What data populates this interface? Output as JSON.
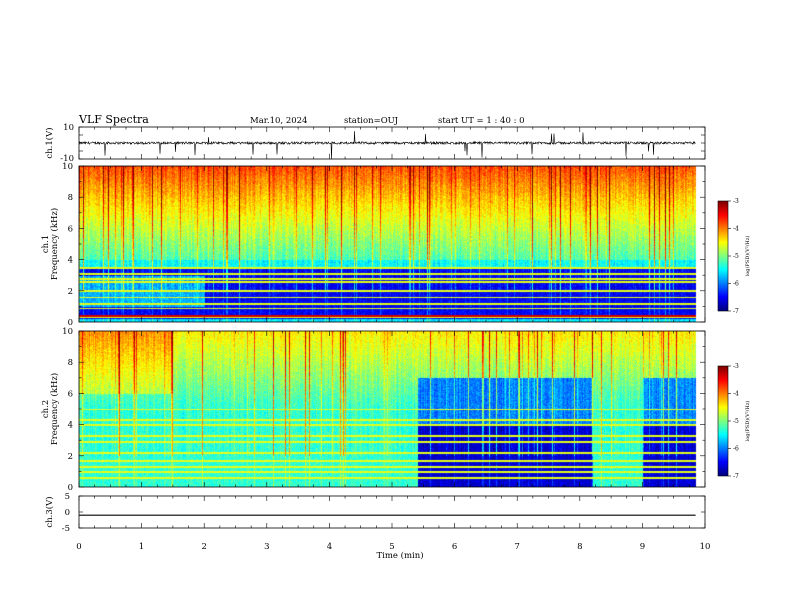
{
  "header": {
    "title": "VLF Spectra",
    "date": "Mar.10, 2024",
    "station": "station=OUJ",
    "start_ut": "start UT =  1 : 40 : 0"
  },
  "chart_data": [
    {
      "type": "line",
      "panel": "ch1_waveform",
      "ylabel": "ch.1(V)",
      "ylim": [
        -10,
        10
      ],
      "y_ticks": [
        "10",
        "-10"
      ],
      "x_range_min": [
        0,
        9.85
      ],
      "description_values": {
        "baseline": 0,
        "amplitude_approx": 1.5
      }
    },
    {
      "type": "heatmap",
      "panel": "ch1_spectrogram",
      "ylabel": "ch.1",
      "ylabel2": "Frequency (kHz)",
      "xlim": [
        0,
        10
      ],
      "ylim": [
        0,
        10
      ],
      "y_ticks": [
        "0",
        "2",
        "4",
        "6",
        "8",
        "10"
      ],
      "data_extent_min": 9.85,
      "colorbar": {
        "label": "log(PSD)(V²/Hz)",
        "ticks": [
          "-3",
          "-4",
          "-5",
          "-6",
          "-7"
        ],
        "range": [
          -7,
          -3
        ]
      }
    },
    {
      "type": "heatmap",
      "panel": "ch2_spectrogram",
      "ylabel": "ch.2",
      "ylabel2": "Frequency (kHz)",
      "xlim": [
        0,
        10
      ],
      "ylim": [
        0,
        10
      ],
      "y_ticks": [
        "0",
        "2",
        "4",
        "6",
        "8",
        "10"
      ],
      "data_extent_min": 9.85,
      "low_intervals_min": [
        [
          5.4,
          8.2
        ],
        [
          9.0,
          9.85
        ]
      ],
      "colorbar": {
        "label": "log(PSD)(V²/Hz)",
        "ticks": [
          "-3",
          "-4",
          "-5",
          "-6",
          "-7"
        ],
        "range": [
          -7,
          -3
        ]
      }
    },
    {
      "type": "line",
      "panel": "ch3_waveform",
      "ylabel": "ch.3(V)",
      "ylim": [
        -5,
        5
      ],
      "y_ticks": [
        "5",
        "0",
        "-5"
      ],
      "x": [
        0,
        9.85
      ],
      "y": [
        -1,
        -1
      ]
    }
  ],
  "xaxis": {
    "label": "Time (min)",
    "ticks": [
      "0",
      "1",
      "2",
      "3",
      "4",
      "5",
      "6",
      "7",
      "8",
      "9",
      "10"
    ],
    "xlim": [
      0,
      10
    ]
  }
}
